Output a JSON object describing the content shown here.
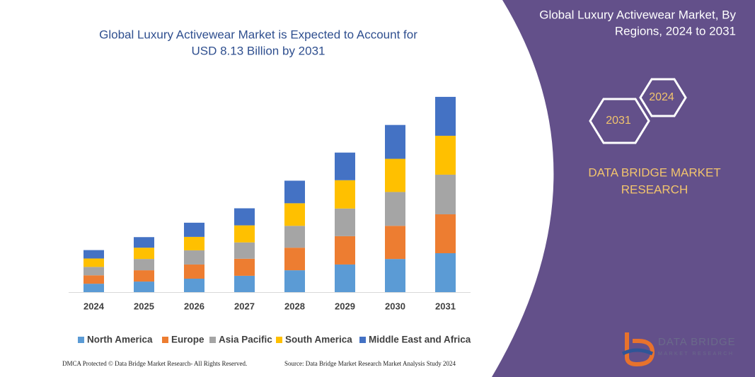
{
  "chart_data": {
    "type": "stacked_bar",
    "title": [
      "Global Luxury Activewear Market is Expected to Account for",
      "USD 8.13 Billion by 2031"
    ],
    "categories": [
      "2024",
      "2025",
      "2026",
      "2027",
      "2028",
      "2029",
      "2030",
      "2031"
    ],
    "series": [
      {
        "name": "North America",
        "color": "#5b9bd5",
        "values": [
          0.35,
          0.44,
          0.56,
          0.68,
          0.91,
          1.15,
          1.38,
          1.62
        ]
      },
      {
        "name": "Europe",
        "color": "#ed7d31",
        "values": [
          0.35,
          0.47,
          0.59,
          0.71,
          0.94,
          1.18,
          1.38,
          1.62
        ]
      },
      {
        "name": "Asia Pacific",
        "color": "#a5a5a5",
        "values": [
          0.35,
          0.47,
          0.59,
          0.68,
          0.91,
          1.15,
          1.41,
          1.65
        ]
      },
      {
        "name": "South America",
        "color": "#ffc000",
        "values": [
          0.35,
          0.47,
          0.56,
          0.71,
          0.94,
          1.18,
          1.38,
          1.62
        ]
      },
      {
        "name": "Middle East and Africa",
        "color": "#4472c4",
        "values": [
          0.35,
          0.44,
          0.59,
          0.71,
          0.94,
          1.15,
          1.41,
          1.62
        ]
      }
    ],
    "ylim": [
      0,
      9
    ],
    "grid": false,
    "legend": "bottom"
  },
  "panel": {
    "heading": [
      "Global Luxury Activewear Market, By",
      "Regions, 2024 to 2031"
    ],
    "hexagons": [
      "2024",
      "2031"
    ],
    "brand": [
      "DATA BRIDGE MARKET",
      "RESEARCH"
    ],
    "logo": [
      "DATA BRIDGE",
      "MARKET RESEARCH"
    ]
  },
  "footer": {
    "left": "DMCA Protected © Data Bridge Market Research-  All Rights Reserved.",
    "right": "Source: Data Bridge Market Research  Market Analysis Study 2024"
  }
}
